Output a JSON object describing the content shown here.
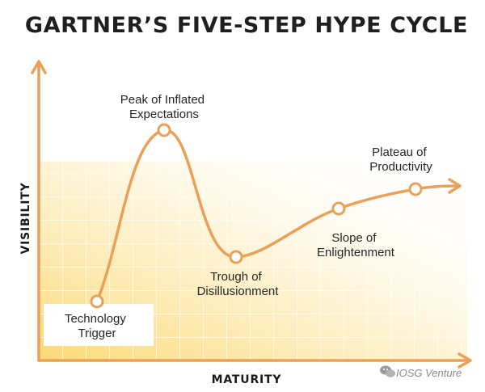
{
  "title": "GARTNER’S FIVE-STEP HYPE CYCLE",
  "axes": {
    "y_label": "VISIBILITY",
    "x_label": "MATURITY"
  },
  "colors": {
    "curve": "#e9a15a",
    "axis": "#e9a15a",
    "point_fill": "#ffffff",
    "grid_fill": "#fde8a8",
    "text": "#262626"
  },
  "stages": [
    {
      "line1": "Technology",
      "line2": "Trigger"
    },
    {
      "line1": "Peak of Inflated",
      "line2": "Expectations"
    },
    {
      "line1": "Trough of",
      "line2": "Disillusionment"
    },
    {
      "line1": "Slope of",
      "line2": "Enlightenment"
    },
    {
      "line1": "Plateau of",
      "line2": "Productivity"
    }
  ],
  "watermark": {
    "icon": "wechat-icon",
    "text": "IOSG Venture"
  }
}
